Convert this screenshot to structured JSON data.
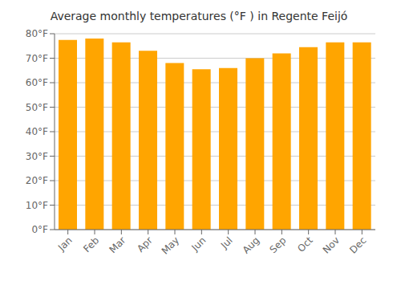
{
  "chart_data": {
    "type": "bar",
    "title": "Average monthly temperatures (°F ) in Regente Feijó",
    "categories": [
      "Jan",
      "Feb",
      "Mar",
      "Apr",
      "May",
      "Jun",
      "Jul",
      "Aug",
      "Sep",
      "Oct",
      "Nov",
      "Dec"
    ],
    "values": [
      77.5,
      78.0,
      76.5,
      73.0,
      68.0,
      65.5,
      66.0,
      70.0,
      72.0,
      74.5,
      76.5,
      76.5
    ],
    "color": "#FFA500",
    "ylim": [
      0,
      80
    ],
    "yticks": [
      {
        "value": 0,
        "label": "0°F"
      },
      {
        "value": 10,
        "label": "10°F"
      },
      {
        "value": 20,
        "label": "20°F"
      },
      {
        "value": 30,
        "label": "30°F"
      },
      {
        "value": 40,
        "label": "40°F"
      },
      {
        "value": 50,
        "label": "50°F"
      },
      {
        "value": 60,
        "label": "60°F"
      },
      {
        "value": 70,
        "label": "70°F"
      },
      {
        "value": 80,
        "label": "80°F"
      }
    ],
    "grid": true
  }
}
